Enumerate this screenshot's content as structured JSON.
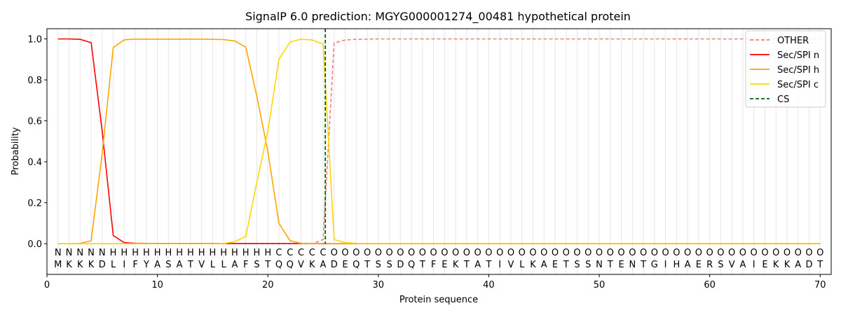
{
  "chart_data": {
    "type": "line",
    "title": "SignalP 6.0 prediction: MGYG000001274_00481 hypothetical protein",
    "xlabel": "Protein sequence",
    "ylabel": "Probability",
    "xlim": [
      0,
      71
    ],
    "ylim": [
      -0.15,
      1.05
    ],
    "xticks": [
      "0",
      "10",
      "20",
      "30",
      "40",
      "50",
      "60",
      "70"
    ],
    "yticks": [
      "0.0",
      "0.2",
      "0.4",
      "0.6",
      "0.8",
      "1.0"
    ],
    "grid": "vertical lines at each residue",
    "legend_position": "top-right",
    "sequence": [
      "M",
      "K",
      "K",
      "K",
      "D",
      "L",
      "I",
      "F",
      "Y",
      "A",
      "S",
      "A",
      "T",
      "V",
      "L",
      "L",
      "A",
      "F",
      "S",
      "T",
      "Q",
      "Q",
      "V",
      "K",
      "A",
      "D",
      "E",
      "Q",
      "T",
      "S",
      "S",
      "D",
      "Q",
      "T",
      "F",
      "E",
      "K",
      "T",
      "A",
      "T",
      "I",
      "V",
      "L",
      "K",
      "A",
      "E",
      "T",
      "S",
      "S",
      "N",
      "T",
      "E",
      "N",
      "T",
      "G",
      "I",
      "H",
      "A",
      "E",
      "R",
      "S",
      "V",
      "A",
      "I",
      "E",
      "K",
      "K",
      "A",
      "D",
      "T"
    ],
    "region_labels": [
      "N",
      "N",
      "N",
      "N",
      "N",
      "H",
      "H",
      "H",
      "H",
      "H",
      "H",
      "H",
      "H",
      "H",
      "H",
      "H",
      "H",
      "H",
      "H",
      "H",
      "C",
      "C",
      "C",
      "C",
      "C",
      "O",
      "O",
      "O",
      "O",
      "O",
      "O",
      "O",
      "O",
      "O",
      "O",
      "O",
      "O",
      "O",
      "O",
      "O",
      "O",
      "O",
      "O",
      "O",
      "O",
      "O",
      "O",
      "O",
      "O",
      "O",
      "O",
      "O",
      "O",
      "O",
      "O",
      "O",
      "O",
      "O",
      "O",
      "O",
      "O",
      "O",
      "O",
      "O",
      "O",
      "O",
      "O",
      "O",
      "O",
      "O"
    ],
    "region_colors": {
      "N": "#ff0000",
      "H": "#ffa500",
      "C": "#ffd700",
      "O": "#808080"
    },
    "cs_position": 25.2,
    "series": [
      {
        "name": "OTHER",
        "color": "#f08080",
        "style": "dashed",
        "values": [
          0,
          0,
          0,
          0,
          0,
          0,
          0,
          0,
          0,
          0,
          0,
          0,
          0,
          0,
          0,
          0,
          0,
          0,
          0,
          0,
          0,
          0,
          0,
          0,
          0.02,
          0.98,
          0.995,
          0.998,
          0.999,
          1,
          1,
          1,
          1,
          1,
          1,
          1,
          1,
          1,
          1,
          1,
          1,
          1,
          1,
          1,
          1,
          1,
          1,
          1,
          1,
          1,
          1,
          1,
          1,
          1,
          1,
          1,
          1,
          1,
          1,
          1,
          1,
          1,
          1,
          1,
          1,
          1,
          1,
          1,
          1,
          1
        ]
      },
      {
        "name": "Sec/SPI n",
        "color": "#ff0000",
        "style": "solid",
        "values": [
          1.0,
          1.0,
          0.998,
          0.982,
          0.55,
          0.04,
          0.005,
          0.002,
          0.001,
          0.001,
          0.001,
          0.001,
          0.001,
          0.001,
          0.001,
          0.001,
          0.001,
          0.001,
          0.001,
          0.001,
          0.001,
          0.001,
          0.001,
          0.001,
          0,
          0,
          0,
          0,
          0,
          0,
          0,
          0,
          0,
          0,
          0,
          0,
          0,
          0,
          0,
          0,
          0,
          0,
          0,
          0,
          0,
          0,
          0,
          0,
          0,
          0,
          0,
          0,
          0,
          0,
          0,
          0,
          0,
          0,
          0,
          0,
          0,
          0,
          0,
          0,
          0,
          0,
          0,
          0,
          0,
          0
        ]
      },
      {
        "name": "Sec/SPI h",
        "color": "#ffa500",
        "style": "solid",
        "values": [
          0,
          0,
          0.001,
          0.015,
          0.44,
          0.958,
          0.996,
          0.999,
          0.999,
          0.999,
          0.999,
          0.999,
          0.999,
          0.999,
          0.998,
          0.997,
          0.99,
          0.96,
          0.72,
          0.45,
          0.1,
          0.015,
          0.002,
          0.001,
          0.001,
          0,
          0,
          0,
          0,
          0,
          0,
          0,
          0,
          0,
          0,
          0,
          0,
          0,
          0,
          0,
          0,
          0,
          0,
          0,
          0,
          0,
          0,
          0,
          0,
          0,
          0,
          0,
          0,
          0,
          0,
          0,
          0,
          0,
          0,
          0,
          0,
          0,
          0,
          0,
          0,
          0,
          0,
          0,
          0,
          0
        ]
      },
      {
        "name": "Sec/SPI c",
        "color": "#ffd700",
        "style": "solid",
        "values": [
          0,
          0,
          0,
          0,
          0,
          0,
          0,
          0,
          0,
          0,
          0,
          0,
          0,
          0,
          0,
          0.001,
          0.01,
          0.035,
          0.3,
          0.55,
          0.9,
          0.985,
          0.999,
          0.995,
          0.975,
          0.02,
          0.005,
          0.002,
          0.001,
          0.001,
          0.001,
          0.001,
          0.001,
          0.001,
          0.001,
          0.001,
          0.001,
          0.001,
          0.001,
          0.001,
          0.001,
          0.001,
          0.001,
          0.001,
          0.001,
          0.001,
          0.001,
          0.001,
          0.001,
          0.001,
          0.001,
          0.001,
          0.001,
          0.001,
          0.001,
          0.001,
          0.001,
          0.001,
          0.001,
          0.001,
          0.001,
          0.001,
          0.001,
          0.001,
          0.001,
          0.001,
          0.001,
          0.001,
          0.001,
          0.001
        ]
      },
      {
        "name": "CS",
        "color": "#006400",
        "style": "dashed",
        "values": []
      }
    ]
  }
}
